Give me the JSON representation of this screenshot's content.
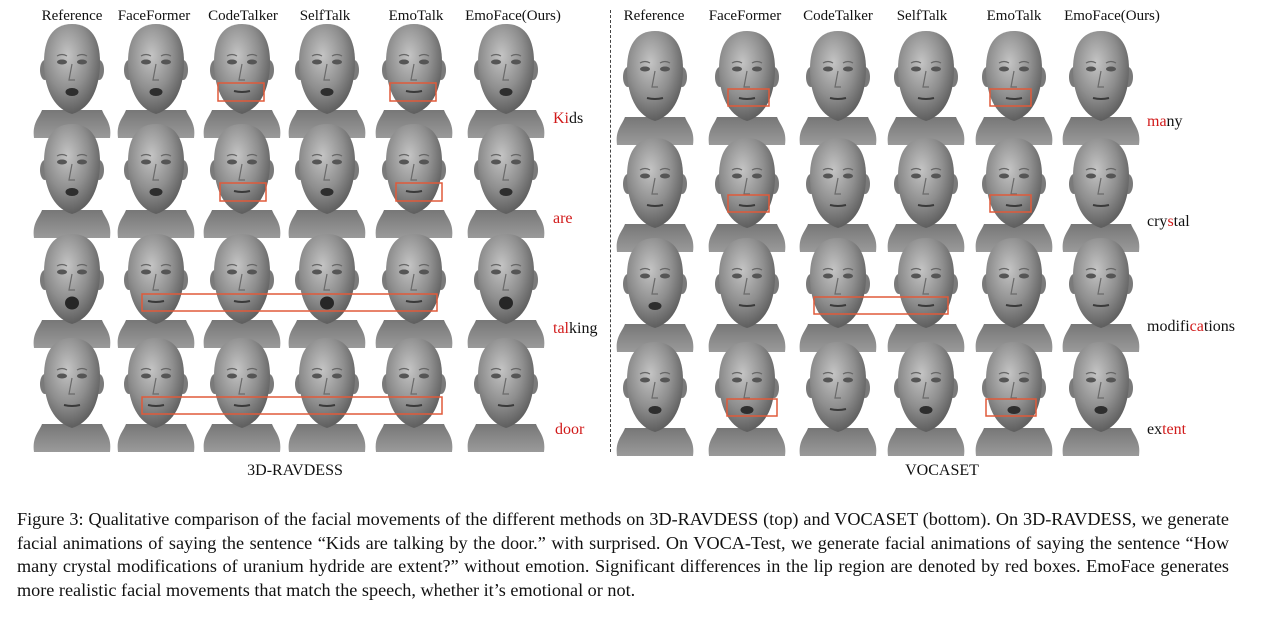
{
  "left_panel": {
    "dataset_label": "3D-RAVDESS",
    "headers": [
      "Reference",
      "FaceFormer",
      "CodeTalker",
      "SelfTalk",
      "EmoTalk",
      "EmoFace(Ours)"
    ],
    "rows": [
      {
        "pre": "",
        "hl": "Ki",
        "post": "ds"
      },
      {
        "pre": "",
        "hl": "are",
        "post": ""
      },
      {
        "pre": "",
        "hl": "tal",
        "post": "king"
      },
      {
        "pre": "",
        "hl": "door",
        "post": ""
      }
    ]
  },
  "right_panel": {
    "dataset_label": "VOCASET",
    "headers": [
      "Reference",
      "FaceFormer",
      "CodeTalker",
      "SelfTalk",
      "EmoTalk",
      "EmoFace(Ours)"
    ],
    "rows": [
      {
        "pre": "",
        "hl": "ma",
        "post": "ny"
      },
      {
        "pre": "cry",
        "hl": "s",
        "post": "tal"
      },
      {
        "pre": "modifi",
        "hl": "ca",
        "post": "tions"
      },
      {
        "pre": "ex",
        "hl": "tent",
        "post": ""
      }
    ]
  },
  "caption": "Figure 3: Qualitative comparison of the facial movements of the different methods on 3D-RAVDESS (top) and VOCASET (bottom). On 3D-RAVDESS, we generate facial animations of saying the sentence “Kids are talking by the door.” with surprised. On VOCA-Test, we generate facial animations of saying the sentence “How many crystal modifications of uranium hydride are extent?” without emotion. Significant differences in the lip region are denoted by red boxes. EmoFace generates more realistic facial movements that match the speech, whether it’s emotional or not.",
  "colors": {
    "highlight": "#d11a1a",
    "box": "#e05a3a",
    "face": "#8a8a8a"
  }
}
